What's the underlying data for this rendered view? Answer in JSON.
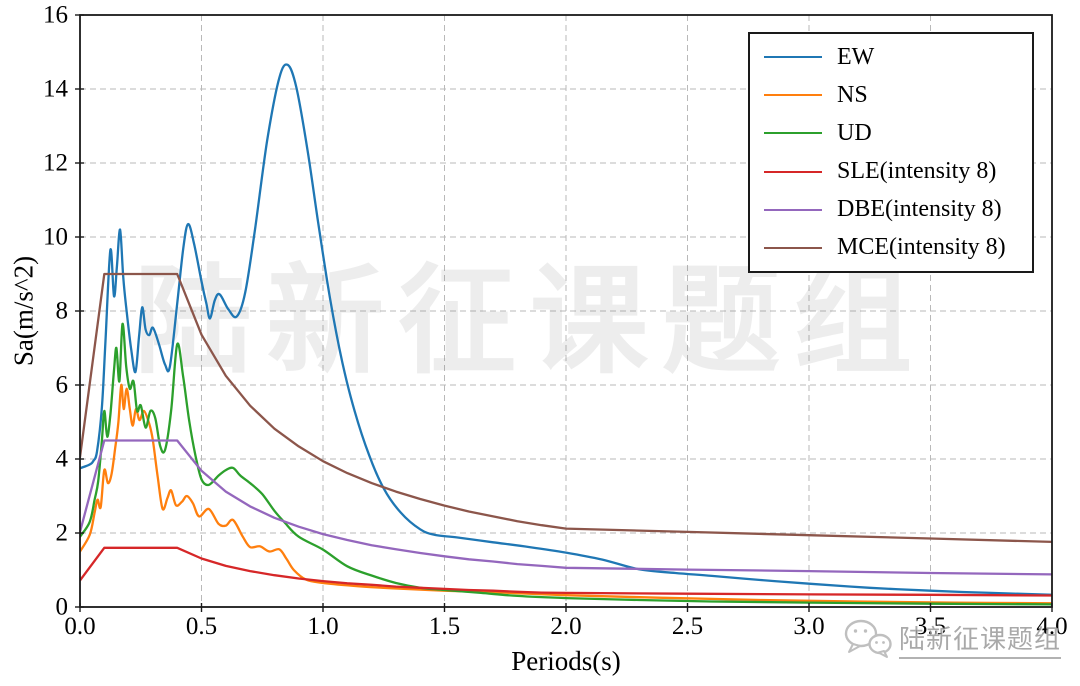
{
  "watermarks": {
    "center_text": "陆新征课题组",
    "badge_text": "陆新征课题组"
  },
  "chart_data": {
    "type": "line",
    "title": "",
    "xlabel": "Periods(s)",
    "ylabel": "Sa(m/s^2)",
    "xlim": [
      0,
      4
    ],
    "ylim": [
      0,
      16
    ],
    "xticks": [
      "0.0",
      "0.5",
      "1.0",
      "1.5",
      "2.0",
      "2.5",
      "3.0",
      "3.5",
      "4.0"
    ],
    "yticks": [
      "0",
      "2",
      "4",
      "6",
      "8",
      "10",
      "12",
      "14",
      "16"
    ],
    "grid": true,
    "grid_style": "dashed",
    "legend": {
      "position": "upper right",
      "entries": [
        "EW",
        "NS",
        "UD",
        "SLE(intensity 8)",
        "DBE(intensity 8)",
        "MCE(intensity 8)"
      ]
    },
    "series": [
      {
        "name": "EW",
        "color": "#1f77b4",
        "smooth": true,
        "points": [
          [
            0,
            3.75
          ],
          [
            0.04,
            3.85
          ],
          [
            0.055,
            3.95
          ],
          [
            0.07,
            4.2
          ],
          [
            0.09,
            5.4
          ],
          [
            0.105,
            7.2
          ],
          [
            0.125,
            9.65
          ],
          [
            0.14,
            8.4
          ],
          [
            0.152,
            9.2
          ],
          [
            0.165,
            10.2
          ],
          [
            0.178,
            8.9
          ],
          [
            0.19,
            8.1
          ],
          [
            0.21,
            7.0
          ],
          [
            0.228,
            6.35
          ],
          [
            0.243,
            7.3
          ],
          [
            0.256,
            8.1
          ],
          [
            0.27,
            7.5
          ],
          [
            0.285,
            7.35
          ],
          [
            0.3,
            7.55
          ],
          [
            0.325,
            7.1
          ],
          [
            0.35,
            6.55
          ],
          [
            0.37,
            6.5
          ],
          [
            0.4,
            8.2
          ],
          [
            0.425,
            9.7
          ],
          [
            0.445,
            10.35
          ],
          [
            0.47,
            9.8
          ],
          [
            0.5,
            8.8
          ],
          [
            0.52,
            8.2
          ],
          [
            0.535,
            7.8
          ],
          [
            0.555,
            8.3
          ],
          [
            0.575,
            8.45
          ],
          [
            0.61,
            8.05
          ],
          [
            0.645,
            7.85
          ],
          [
            0.68,
            8.5
          ],
          [
            0.72,
            10.2
          ],
          [
            0.77,
            12.6
          ],
          [
            0.82,
            14.3
          ],
          [
            0.855,
            14.65
          ],
          [
            0.89,
            14.05
          ],
          [
            0.935,
            12.4
          ],
          [
            0.98,
            10.4
          ],
          [
            1.03,
            8.3
          ],
          [
            1.08,
            6.6
          ],
          [
            1.13,
            5.3
          ],
          [
            1.19,
            4.1
          ],
          [
            1.25,
            3.2
          ],
          [
            1.32,
            2.55
          ],
          [
            1.4,
            2.1
          ],
          [
            1.46,
            1.95
          ],
          [
            1.55,
            1.88
          ],
          [
            1.7,
            1.75
          ],
          [
            1.85,
            1.62
          ],
          [
            2.0,
            1.47
          ],
          [
            2.15,
            1.28
          ],
          [
            2.3,
            1.02
          ],
          [
            2.45,
            0.92
          ],
          [
            2.6,
            0.84
          ],
          [
            2.8,
            0.73
          ],
          [
            3.0,
            0.63
          ],
          [
            3.25,
            0.52
          ],
          [
            3.5,
            0.44
          ],
          [
            3.75,
            0.38
          ],
          [
            4.0,
            0.33
          ]
        ]
      },
      {
        "name": "NS",
        "color": "#ff7f0e",
        "smooth": true,
        "points": [
          [
            0,
            1.5
          ],
          [
            0.04,
            1.95
          ],
          [
            0.06,
            2.55
          ],
          [
            0.072,
            2.9
          ],
          [
            0.085,
            2.7
          ],
          [
            0.1,
            3.7
          ],
          [
            0.115,
            3.35
          ],
          [
            0.13,
            3.6
          ],
          [
            0.145,
            4.3
          ],
          [
            0.158,
            5.0
          ],
          [
            0.17,
            6.0
          ],
          [
            0.18,
            5.35
          ],
          [
            0.192,
            5.9
          ],
          [
            0.205,
            5.35
          ],
          [
            0.217,
            4.9
          ],
          [
            0.23,
            5.35
          ],
          [
            0.245,
            5.05
          ],
          [
            0.263,
            5.3
          ],
          [
            0.285,
            4.95
          ],
          [
            0.3,
            4.5
          ],
          [
            0.32,
            3.5
          ],
          [
            0.34,
            2.65
          ],
          [
            0.36,
            2.95
          ],
          [
            0.375,
            3.15
          ],
          [
            0.395,
            2.75
          ],
          [
            0.42,
            2.85
          ],
          [
            0.44,
            3.0
          ],
          [
            0.465,
            2.8
          ],
          [
            0.49,
            2.45
          ],
          [
            0.53,
            2.65
          ],
          [
            0.57,
            2.25
          ],
          [
            0.6,
            2.2
          ],
          [
            0.63,
            2.35
          ],
          [
            0.67,
            1.9
          ],
          [
            0.7,
            1.62
          ],
          [
            0.74,
            1.64
          ],
          [
            0.78,
            1.5
          ],
          [
            0.82,
            1.56
          ],
          [
            0.85,
            1.3
          ],
          [
            0.88,
            1.0
          ],
          [
            0.93,
            0.74
          ],
          [
            1.0,
            0.65
          ],
          [
            1.15,
            0.56
          ],
          [
            1.3,
            0.5
          ],
          [
            1.5,
            0.44
          ],
          [
            1.7,
            0.4
          ],
          [
            2.0,
            0.32
          ],
          [
            2.4,
            0.25
          ],
          [
            2.8,
            0.19
          ],
          [
            3.2,
            0.15
          ],
          [
            3.6,
            0.12
          ],
          [
            4.0,
            0.1
          ]
        ]
      },
      {
        "name": "UD",
        "color": "#2ca02c",
        "smooth": true,
        "points": [
          [
            0,
            1.9
          ],
          [
            0.04,
            2.3
          ],
          [
            0.06,
            2.9
          ],
          [
            0.075,
            3.4
          ],
          [
            0.09,
            4.5
          ],
          [
            0.1,
            5.3
          ],
          [
            0.112,
            4.6
          ],
          [
            0.125,
            5.2
          ],
          [
            0.14,
            6.4
          ],
          [
            0.15,
            7.0
          ],
          [
            0.162,
            6.1
          ],
          [
            0.175,
            7.65
          ],
          [
            0.19,
            6.5
          ],
          [
            0.205,
            5.9
          ],
          [
            0.22,
            6.1
          ],
          [
            0.235,
            5.3
          ],
          [
            0.25,
            5.45
          ],
          [
            0.27,
            4.85
          ],
          [
            0.29,
            5.3
          ],
          [
            0.31,
            5.1
          ],
          [
            0.33,
            4.35
          ],
          [
            0.35,
            4.25
          ],
          [
            0.375,
            5.3
          ],
          [
            0.4,
            7.1
          ],
          [
            0.425,
            6.2
          ],
          [
            0.45,
            5.0
          ],
          [
            0.475,
            4.1
          ],
          [
            0.5,
            3.45
          ],
          [
            0.53,
            3.3
          ],
          [
            0.57,
            3.55
          ],
          [
            0.6,
            3.7
          ],
          [
            0.63,
            3.76
          ],
          [
            0.66,
            3.55
          ],
          [
            0.7,
            3.35
          ],
          [
            0.75,
            3.05
          ],
          [
            0.8,
            2.6
          ],
          [
            0.84,
            2.3
          ],
          [
            0.9,
            1.9
          ],
          [
            1.0,
            1.55
          ],
          [
            1.1,
            1.1
          ],
          [
            1.2,
            0.85
          ],
          [
            1.3,
            0.65
          ],
          [
            1.4,
            0.52
          ],
          [
            1.5,
            0.46
          ],
          [
            1.65,
            0.38
          ],
          [
            1.8,
            0.3
          ],
          [
            2.0,
            0.24
          ],
          [
            2.3,
            0.19
          ],
          [
            2.6,
            0.15
          ],
          [
            3.0,
            0.12
          ],
          [
            3.5,
            0.09
          ],
          [
            4.0,
            0.07
          ]
        ]
      },
      {
        "name": "SLE(intensity 8)",
        "color": "#d62728",
        "smooth": false,
        "points": [
          [
            0,
            0.72
          ],
          [
            0.1,
            1.6
          ],
          [
            0.4,
            1.6
          ],
          [
            0.5,
            1.31
          ],
          [
            0.6,
            1.11
          ],
          [
            0.7,
            0.97
          ],
          [
            0.8,
            0.86
          ],
          [
            0.9,
            0.77
          ],
          [
            1.0,
            0.7
          ],
          [
            1.1,
            0.64
          ],
          [
            1.2,
            0.6
          ],
          [
            1.3,
            0.55
          ],
          [
            1.4,
            0.52
          ],
          [
            1.5,
            0.49
          ],
          [
            1.6,
            0.46
          ],
          [
            1.7,
            0.44
          ],
          [
            1.8,
            0.41
          ],
          [
            1.9,
            0.39
          ],
          [
            2.0,
            0.38
          ],
          [
            2.5,
            0.36
          ],
          [
            3.0,
            0.34
          ],
          [
            3.5,
            0.33
          ],
          [
            4.0,
            0.31
          ]
        ]
      },
      {
        "name": "DBE(intensity 8)",
        "color": "#9467bd",
        "smooth": false,
        "points": [
          [
            0,
            2.03
          ],
          [
            0.1,
            4.5
          ],
          [
            0.4,
            4.5
          ],
          [
            0.5,
            3.68
          ],
          [
            0.6,
            3.12
          ],
          [
            0.7,
            2.72
          ],
          [
            0.8,
            2.41
          ],
          [
            0.9,
            2.17
          ],
          [
            1.0,
            1.97
          ],
          [
            1.1,
            1.81
          ],
          [
            1.2,
            1.67
          ],
          [
            1.3,
            1.56
          ],
          [
            1.4,
            1.46
          ],
          [
            1.5,
            1.37
          ],
          [
            1.6,
            1.29
          ],
          [
            1.7,
            1.23
          ],
          [
            1.8,
            1.16
          ],
          [
            1.9,
            1.11
          ],
          [
            2.0,
            1.06
          ],
          [
            2.5,
            1.01
          ],
          [
            3.0,
            0.97
          ],
          [
            3.5,
            0.92
          ],
          [
            4.0,
            0.88
          ]
        ]
      },
      {
        "name": "MCE(intensity 8)",
        "color": "#8c564b",
        "smooth": false,
        "points": [
          [
            0,
            4.05
          ],
          [
            0.1,
            9.0
          ],
          [
            0.4,
            9.0
          ],
          [
            0.5,
            7.36
          ],
          [
            0.6,
            6.25
          ],
          [
            0.7,
            5.44
          ],
          [
            0.8,
            4.82
          ],
          [
            0.9,
            4.34
          ],
          [
            1.0,
            3.94
          ],
          [
            1.1,
            3.62
          ],
          [
            1.2,
            3.35
          ],
          [
            1.3,
            3.12
          ],
          [
            1.4,
            2.92
          ],
          [
            1.5,
            2.74
          ],
          [
            1.6,
            2.58
          ],
          [
            1.7,
            2.45
          ],
          [
            1.8,
            2.32
          ],
          [
            1.9,
            2.21
          ],
          [
            2.0,
            2.12
          ],
          [
            2.5,
            2.03
          ],
          [
            3.0,
            1.94
          ],
          [
            3.5,
            1.85
          ],
          [
            4.0,
            1.76
          ]
        ]
      }
    ]
  }
}
